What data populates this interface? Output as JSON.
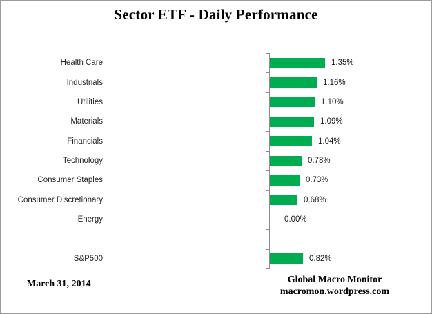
{
  "title": "Sector ETF - Daily Performance",
  "footer": {
    "date": "March 31, 2014",
    "source_line1": "Global Macro Monitor",
    "source_line2": "macromon.wordpress.com"
  },
  "colors": {
    "bar": "#00AC50",
    "axis": "#8c8c8c",
    "text": "#262626"
  },
  "chart_data": {
    "type": "bar",
    "orientation": "horizontal",
    "title": "Sector ETF - Daily Performance",
    "xlabel": "",
    "ylabel": "",
    "gridlines": false,
    "legend": false,
    "data_labels": true,
    "categories": [
      "Health Care",
      "Industrials",
      "Utilities",
      "Materials",
      "Financials",
      "Technology",
      "Consumer Staples",
      "Consumer Discretionary",
      "Energy",
      "",
      "S&P500"
    ],
    "values": [
      1.35,
      1.16,
      1.1,
      1.09,
      1.04,
      0.78,
      0.73,
      0.68,
      0.0,
      null,
      0.82
    ],
    "value_labels": [
      "1.35%",
      "1.16%",
      "1.10%",
      "1.09%",
      "1.04%",
      "0.78%",
      "0.73%",
      "0.68%",
      "0.00%",
      "",
      "0.82%"
    ],
    "unit": "percent"
  }
}
